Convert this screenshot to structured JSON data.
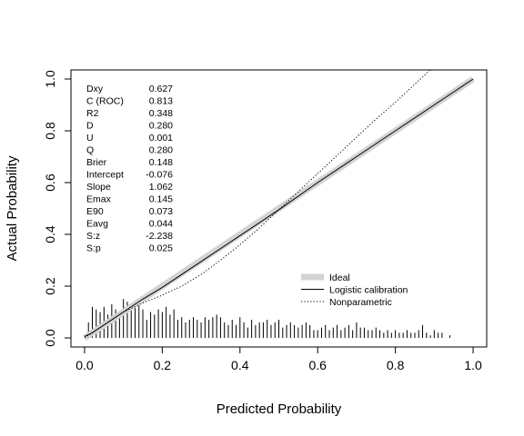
{
  "chart_data": {
    "type": "line",
    "title": "",
    "xlabel": "Predicted Probability",
    "ylabel": "Actual Probability",
    "xlim": [
      -0.035,
      1.035
    ],
    "ylim": [
      -0.035,
      1.035
    ],
    "xticks": [
      0.0,
      0.2,
      0.4,
      0.6,
      0.8,
      1.0
    ],
    "xtick_labels": [
      "0.0",
      "0.2",
      "0.4",
      "0.6",
      "0.8",
      "1.0"
    ],
    "yticks": [
      0.0,
      0.2,
      0.4,
      0.6,
      0.8,
      1.0
    ],
    "ytick_labels": [
      "0.0",
      "0.2",
      "0.4",
      "0.6",
      "0.8",
      "1.0"
    ],
    "grid": false,
    "series": [
      {
        "name": "Ideal",
        "style": "thick-gray",
        "color": "#d3d3d3",
        "x": [
          0.0,
          1.0
        ],
        "y": [
          0.0,
          1.0
        ]
      },
      {
        "name": "Logistic calibration",
        "style": "solid",
        "color": "#000000",
        "x": [
          0.0,
          0.02,
          0.05,
          0.1,
          0.15,
          0.2,
          0.3,
          0.4,
          0.5,
          0.6,
          0.7,
          0.8,
          0.9,
          0.95,
          1.0
        ],
        "y": [
          0.005,
          0.02,
          0.05,
          0.1,
          0.15,
          0.195,
          0.295,
          0.395,
          0.495,
          0.6,
          0.7,
          0.8,
          0.9,
          0.95,
          1.0
        ]
      },
      {
        "name": "Nonparametric",
        "style": "dotted",
        "color": "#000000",
        "x": [
          0.0,
          0.05,
          0.1,
          0.15,
          0.2,
          0.25,
          0.3,
          0.35,
          0.4,
          0.45,
          0.5,
          0.55,
          0.6,
          0.65,
          0.7,
          0.75,
          0.8,
          0.85,
          0.9,
          0.91
        ],
        "y": [
          0.0,
          0.05,
          0.1,
          0.135,
          0.165,
          0.2,
          0.245,
          0.3,
          0.36,
          0.425,
          0.495,
          0.565,
          0.635,
          0.705,
          0.775,
          0.845,
          0.91,
          0.98,
          1.05,
          1.065
        ]
      }
    ],
    "spikes": {
      "x": [
        0.01,
        0.02,
        0.03,
        0.04,
        0.05,
        0.06,
        0.07,
        0.08,
        0.09,
        0.1,
        0.11,
        0.12,
        0.13,
        0.14,
        0.15,
        0.16,
        0.17,
        0.18,
        0.19,
        0.2,
        0.21,
        0.22,
        0.23,
        0.24,
        0.25,
        0.26,
        0.27,
        0.28,
        0.29,
        0.3,
        0.31,
        0.32,
        0.33,
        0.34,
        0.35,
        0.36,
        0.37,
        0.38,
        0.39,
        0.4,
        0.41,
        0.42,
        0.43,
        0.44,
        0.45,
        0.46,
        0.47,
        0.48,
        0.49,
        0.5,
        0.51,
        0.52,
        0.53,
        0.54,
        0.55,
        0.56,
        0.57,
        0.58,
        0.59,
        0.6,
        0.61,
        0.62,
        0.63,
        0.64,
        0.65,
        0.66,
        0.67,
        0.68,
        0.69,
        0.7,
        0.71,
        0.72,
        0.73,
        0.74,
        0.75,
        0.76,
        0.77,
        0.78,
        0.79,
        0.8,
        0.81,
        0.82,
        0.83,
        0.84,
        0.85,
        0.86,
        0.87,
        0.88,
        0.89,
        0.9,
        0.91,
        0.92,
        0.94
      ],
      "height": [
        0.06,
        0.12,
        0.11,
        0.1,
        0.12,
        0.09,
        0.13,
        0.11,
        0.1,
        0.15,
        0.14,
        0.12,
        0.13,
        0.14,
        0.11,
        0.07,
        0.1,
        0.09,
        0.11,
        0.1,
        0.12,
        0.09,
        0.11,
        0.07,
        0.08,
        0.06,
        0.07,
        0.08,
        0.07,
        0.06,
        0.08,
        0.07,
        0.08,
        0.09,
        0.08,
        0.06,
        0.05,
        0.07,
        0.05,
        0.08,
        0.06,
        0.04,
        0.07,
        0.05,
        0.06,
        0.06,
        0.07,
        0.05,
        0.06,
        0.07,
        0.04,
        0.05,
        0.06,
        0.05,
        0.04,
        0.05,
        0.06,
        0.05,
        0.03,
        0.03,
        0.04,
        0.05,
        0.03,
        0.04,
        0.05,
        0.03,
        0.04,
        0.05,
        0.03,
        0.06,
        0.04,
        0.04,
        0.03,
        0.03,
        0.04,
        0.03,
        0.02,
        0.03,
        0.02,
        0.03,
        0.02,
        0.02,
        0.03,
        0.02,
        0.02,
        0.03,
        0.05,
        0.02,
        0.01,
        0.03,
        0.02,
        0.02,
        0.01
      ]
    },
    "stats": [
      {
        "label": "Dxy",
        "value": "0.627"
      },
      {
        "label": "C (ROC)",
        "value": "0.813"
      },
      {
        "label": "R2",
        "value": "0.348"
      },
      {
        "label": "D",
        "value": "0.280"
      },
      {
        "label": "U",
        "value": "0.001"
      },
      {
        "label": "Q",
        "value": "0.280"
      },
      {
        "label": "Brier",
        "value": "0.148"
      },
      {
        "label": "Intercept",
        "value": "-0.076"
      },
      {
        "label": "Slope",
        "value": "1.062"
      },
      {
        "label": "Emax",
        "value": "0.145"
      },
      {
        "label": "E90",
        "value": "0.073"
      },
      {
        "label": "Eavg",
        "value": "0.044"
      },
      {
        "label": "S:z",
        "value": "-2.238"
      },
      {
        "label": "S:p",
        "value": "0.025"
      }
    ],
    "legend": {
      "placement": "bottom-right",
      "entries": [
        "Ideal",
        "Logistic calibration",
        "Nonparametric"
      ]
    }
  }
}
